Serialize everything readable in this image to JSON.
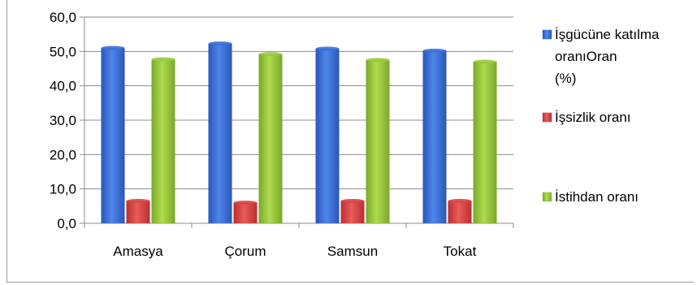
{
  "chart_data": {
    "type": "bar",
    "categories": [
      "Amasya",
      "Çorum",
      "Samsun",
      "Tokat"
    ],
    "series": [
      {
        "name": "İşgücüne katılma oranıOran (%)",
        "legend_lines": [
          "İşgücüne katılma",
          "oranıOran",
          "(%)"
        ],
        "color": "#3a6fd8",
        "values": [
          51.0,
          52.3,
          50.8,
          50.2
        ]
      },
      {
        "name": "İşsizlik oranı",
        "legend_lines": [
          "İşsizlik oranı"
        ],
        "color": "#d64545",
        "values": [
          6.5,
          6.0,
          6.5,
          6.5
        ]
      },
      {
        "name": "İstihdan oranı",
        "legend_lines": [
          "İstihdan oranı"
        ],
        "color": "#97c93a",
        "values": [
          47.7,
          49.2,
          47.5,
          47.0
        ]
      }
    ],
    "yticks": [
      "0,0",
      "10,0",
      "20,0",
      "30,0",
      "40,0",
      "50,0",
      "60,0"
    ],
    "ylim": [
      0,
      60
    ],
    "grid": true,
    "legend_position": "right",
    "title": "",
    "xlabel": "",
    "ylabel": ""
  }
}
